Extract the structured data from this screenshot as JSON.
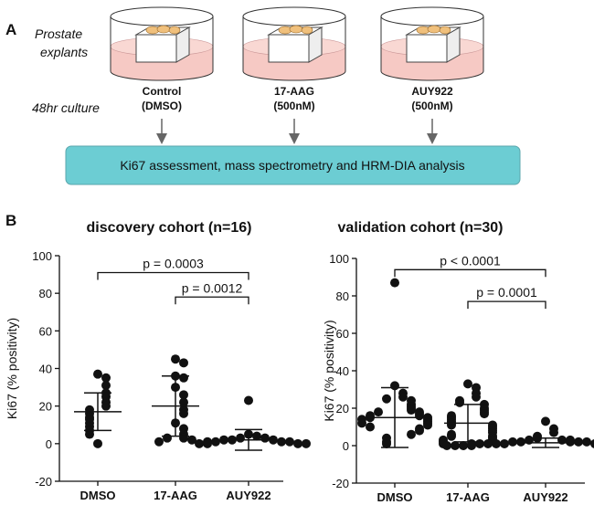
{
  "figure": {
    "panel_a": {
      "label": "A",
      "explants": [
        "Prostate",
        "explants"
      ],
      "culture": "48hr culture",
      "conditions": [
        [
          "Control",
          "(DMSO)"
        ],
        [
          "17-AAG",
          "(500nM)"
        ],
        [
          "AUY922",
          "(500nM)"
        ]
      ],
      "assay": "Ki67 assessment, mass spectrometry and HRM-DIA analysis"
    },
    "panel_b": {
      "label": "B"
    }
  },
  "chart_data": [
    {
      "type": "strip",
      "title": "discovery cohort (n=16)",
      "y_label": "Ki67 (% positivity)",
      "categories": [
        "DMSO",
        "17-AAG",
        "AUY922"
      ],
      "points": [
        [
          37,
          35,
          31,
          27,
          25,
          22,
          20,
          18,
          16,
          14,
          13,
          11,
          9,
          7,
          5,
          0
        ],
        [
          45,
          43,
          36,
          35,
          30,
          26,
          22,
          18,
          16,
          11,
          8,
          5,
          3,
          3,
          2,
          1
        ],
        [
          23,
          5,
          4,
          3,
          3,
          2,
          2,
          2,
          1,
          1,
          1,
          1,
          0,
          0,
          0,
          0
        ]
      ],
      "means": [
        17,
        20,
        2
      ],
      "sd": [
        10,
        16,
        5.5
      ],
      "color": "#111111",
      "ylim": [
        -20,
        100
      ],
      "yticks": [
        -20,
        0,
        20,
        40,
        60,
        80,
        100
      ],
      "brackets": [
        {
          "label": "p = 0.0003",
          "y": 91,
          "from": "DMSO",
          "to": "AUY922"
        },
        {
          "label": "p = 0.0012",
          "y": 78,
          "from": "17-AAG",
          "to": "AUY922"
        }
      ]
    },
    {
      "type": "strip",
      "title": "validation cohort (n=30)",
      "y_label": "Ki67 (% positivity)",
      "categories": [
        "DMSO",
        "17-AAG",
        "AUY922"
      ],
      "points": [
        [
          87,
          32,
          28,
          26,
          25,
          24,
          22,
          21,
          20,
          19,
          18,
          18,
          17,
          16,
          16,
          15,
          15,
          14,
          14,
          13,
          12,
          12,
          11,
          10,
          9,
          8,
          6,
          4,
          2,
          1
        ],
        [
          33,
          31,
          28,
          26,
          24,
          23,
          22,
          20,
          19,
          18,
          17,
          16,
          15,
          14,
          13,
          12,
          11,
          11,
          10,
          9,
          8,
          7,
          6,
          5,
          5,
          4,
          3,
          3,
          2,
          1
        ],
        [
          13,
          9,
          7,
          5,
          4,
          3,
          3,
          3,
          2,
          2,
          2,
          2,
          2,
          1,
          1,
          1,
          1,
          1,
          1,
          1,
          1,
          1,
          0,
          0,
          0,
          0,
          0,
          0,
          0,
          0
        ]
      ],
      "means": [
        15,
        12,
        1.5
      ],
      "sd": [
        16,
        10,
        2.5
      ],
      "color": "#111111",
      "ylim": [
        -20,
        100
      ],
      "yticks": [
        -20,
        0,
        20,
        40,
        60,
        80,
        100
      ],
      "brackets": [
        {
          "label": "p < 0.0001",
          "y": 94,
          "from": "DMSO",
          "to": "AUY922"
        },
        {
          "label": "p = 0.0001",
          "y": 77,
          "from": "17-AAG",
          "to": "AUY922"
        }
      ]
    }
  ]
}
